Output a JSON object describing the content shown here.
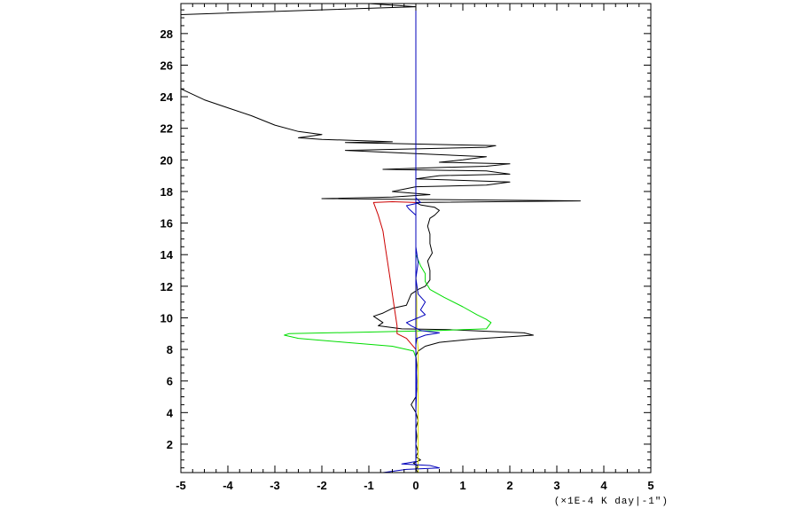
{
  "chart_data": {
    "type": "line",
    "title": "",
    "xlabel": "(×1E-4 K day|-1\")",
    "ylabel": "",
    "xlim": [
      -5,
      5
    ],
    "ylim": [
      0.2,
      29.9
    ],
    "x_ticks": [
      -5,
      -4,
      -3,
      -2,
      -1,
      0,
      1,
      2,
      3,
      4,
      5
    ],
    "y_ticks": [
      2,
      4,
      6,
      8,
      10,
      12,
      14,
      16,
      18,
      20,
      22,
      24,
      26,
      28
    ],
    "x_minor_step": 0.25,
    "y_minor_step": 0.5,
    "grid": false,
    "legend": "none",
    "series": [
      {
        "color": "#000000",
        "points": [
          [
            0.05,
            0.2
          ],
          [
            0.0,
            0.4
          ],
          [
            0.05,
            0.6
          ],
          [
            -0.05,
            0.8
          ],
          [
            0.1,
            1.0
          ],
          [
            0.0,
            1.2
          ],
          [
            0.05,
            1.5
          ],
          [
            0.0,
            2.0
          ],
          [
            0.02,
            2.5
          ],
          [
            0.0,
            3.0
          ],
          [
            0.05,
            3.5
          ],
          [
            0.0,
            4.0
          ],
          [
            -0.1,
            4.5
          ],
          [
            0.0,
            5.0
          ],
          [
            0.02,
            5.5
          ],
          [
            0.0,
            6.0
          ],
          [
            0.02,
            7.0
          ],
          [
            0.0,
            7.6
          ],
          [
            0.05,
            7.9
          ],
          [
            0.2,
            8.2
          ],
          [
            0.5,
            8.45
          ],
          [
            1.2,
            8.65
          ],
          [
            2.5,
            8.9
          ],
          [
            2.3,
            9.05
          ],
          [
            1.5,
            9.15
          ],
          [
            0.7,
            9.25
          ],
          [
            -0.3,
            9.3
          ],
          [
            -0.8,
            9.5
          ],
          [
            -0.7,
            9.7
          ],
          [
            -0.9,
            10.1
          ],
          [
            -0.7,
            10.3
          ],
          [
            -0.5,
            10.6
          ],
          [
            -0.2,
            10.8
          ],
          [
            -0.1,
            11.5
          ],
          [
            0.05,
            11.8
          ],
          [
            0.2,
            12.0
          ],
          [
            0.3,
            12.4
          ],
          [
            0.3,
            13.0
          ],
          [
            0.25,
            13.6
          ],
          [
            0.35,
            14.1
          ],
          [
            0.3,
            14.7
          ],
          [
            0.3,
            15.3
          ],
          [
            0.25,
            15.8
          ],
          [
            0.3,
            16.3
          ],
          [
            0.4,
            16.5
          ],
          [
            0.5,
            16.8
          ],
          [
            0.4,
            17.0
          ],
          [
            0.1,
            17.15
          ],
          [
            0.0,
            17.3
          ],
          [
            3.5,
            17.4
          ],
          [
            0.0,
            17.5
          ],
          [
            -2.0,
            17.55
          ],
          [
            -0.5,
            17.65
          ],
          [
            0.3,
            17.8
          ],
          [
            -0.5,
            18.0
          ],
          [
            0.0,
            18.3
          ],
          [
            1.5,
            18.4
          ],
          [
            2.0,
            18.6
          ],
          [
            0.0,
            18.8
          ],
          [
            0.5,
            19.0
          ],
          [
            2.0,
            19.1
          ],
          [
            1.5,
            19.3
          ],
          [
            -0.7,
            19.4
          ],
          [
            0.3,
            19.5
          ],
          [
            1.5,
            19.6
          ],
          [
            2.0,
            19.75
          ],
          [
            0.5,
            19.85
          ],
          [
            1.0,
            20.0
          ],
          [
            1.5,
            20.2
          ],
          [
            0.0,
            20.4
          ],
          [
            -1.5,
            20.6
          ],
          [
            1.5,
            20.8
          ],
          [
            1.7,
            20.9
          ],
          [
            -1.5,
            21.1
          ],
          [
            -0.5,
            21.15
          ],
          [
            -2.0,
            21.3
          ],
          [
            -2.5,
            21.4
          ],
          [
            -2.0,
            21.6
          ],
          [
            -2.5,
            21.8
          ],
          [
            -3.0,
            22.2
          ],
          [
            -3.5,
            22.8
          ],
          [
            -4.0,
            23.3
          ],
          [
            -4.5,
            23.8
          ],
          [
            -5.0,
            24.5
          ]
        ]
      },
      {
        "color": "#000000",
        "points": [
          [
            -5.0,
            29.2
          ],
          [
            -2.0,
            29.5
          ],
          [
            0.0,
            29.7
          ],
          [
            -1.0,
            29.9
          ]
        ]
      },
      {
        "color": "#00dd00",
        "points": [
          [
            0.0,
            0.2
          ],
          [
            0.0,
            2.0
          ],
          [
            0.0,
            5.0
          ],
          [
            0.0,
            7.5
          ],
          [
            -0.05,
            7.9
          ],
          [
            -0.5,
            8.2
          ],
          [
            -1.5,
            8.45
          ],
          [
            -2.5,
            8.7
          ],
          [
            -2.8,
            8.9
          ],
          [
            -2.7,
            9.0
          ],
          [
            -1.0,
            9.1
          ],
          [
            0.5,
            9.2
          ],
          [
            1.5,
            9.3
          ],
          [
            1.6,
            9.7
          ],
          [
            1.5,
            9.9
          ],
          [
            1.3,
            10.2
          ],
          [
            1.0,
            10.7
          ],
          [
            0.6,
            11.3
          ],
          [
            0.3,
            11.8
          ],
          [
            0.2,
            12.3
          ],
          [
            0.2,
            12.8
          ],
          [
            0.1,
            13.3
          ],
          [
            0.0,
            14.0
          ],
          [
            0.0,
            15.0
          ],
          [
            0.0,
            16.0
          ],
          [
            0.0,
            17.0
          ]
        ]
      },
      {
        "color": "#cc0000",
        "points": [
          [
            0.0,
            0.2
          ],
          [
            0.0,
            5.0
          ],
          [
            0.0,
            8.0
          ],
          [
            -0.2,
            8.7
          ],
          [
            -0.4,
            9.0
          ],
          [
            -0.4,
            9.5
          ],
          [
            -0.45,
            10.5
          ],
          [
            -0.5,
            11.5
          ],
          [
            -0.55,
            12.5
          ],
          [
            -0.6,
            13.5
          ],
          [
            -0.65,
            14.5
          ],
          [
            -0.7,
            15.5
          ],
          [
            -0.8,
            16.5
          ],
          [
            -0.9,
            17.3
          ],
          [
            -0.5,
            17.35
          ],
          [
            0.0,
            17.3
          ]
        ]
      },
      {
        "color": "#dddd00",
        "points": [
          [
            0.05,
            0.2
          ],
          [
            0.05,
            2.0
          ],
          [
            0.05,
            5.0
          ],
          [
            0.05,
            8.0
          ],
          [
            0.02,
            9.0
          ],
          [
            0.02,
            11.0
          ],
          [
            0.0,
            13.0
          ],
          [
            0.0,
            15.0
          ],
          [
            0.0,
            17.0
          ]
        ]
      },
      {
        "color": "#0000bb",
        "points": [
          [
            -0.7,
            0.2
          ],
          [
            -0.2,
            0.4
          ],
          [
            0.5,
            0.5
          ],
          [
            0.3,
            0.65
          ],
          [
            -0.3,
            0.75
          ],
          [
            0.0,
            0.9
          ],
          [
            0.0,
            1.5
          ],
          [
            0.0,
            2.5
          ],
          [
            0.0,
            4.0
          ],
          [
            0.02,
            6.0
          ],
          [
            0.0,
            7.5
          ],
          [
            0.0,
            8.3
          ],
          [
            0.02,
            8.7
          ],
          [
            0.2,
            8.9
          ],
          [
            0.5,
            9.05
          ],
          [
            0.1,
            9.2
          ],
          [
            -0.1,
            9.5
          ],
          [
            -0.2,
            9.7
          ],
          [
            0.05,
            10.0
          ],
          [
            0.2,
            10.2
          ],
          [
            0.1,
            10.5
          ],
          [
            0.2,
            11.0
          ],
          [
            0.05,
            11.5
          ],
          [
            0.0,
            12.5
          ],
          [
            0.05,
            13.5
          ],
          [
            0.0,
            14.5
          ],
          [
            0.0,
            15.5
          ],
          [
            0.0,
            16.5
          ],
          [
            -0.15,
            16.9
          ],
          [
            -0.2,
            17.1
          ],
          [
            0.1,
            17.3
          ],
          [
            0.0,
            17.6
          ]
        ]
      },
      {
        "color": "#0000bb",
        "points": [
          [
            0.0,
            0.2
          ],
          [
            0.0,
            29.9
          ]
        ]
      }
    ]
  }
}
